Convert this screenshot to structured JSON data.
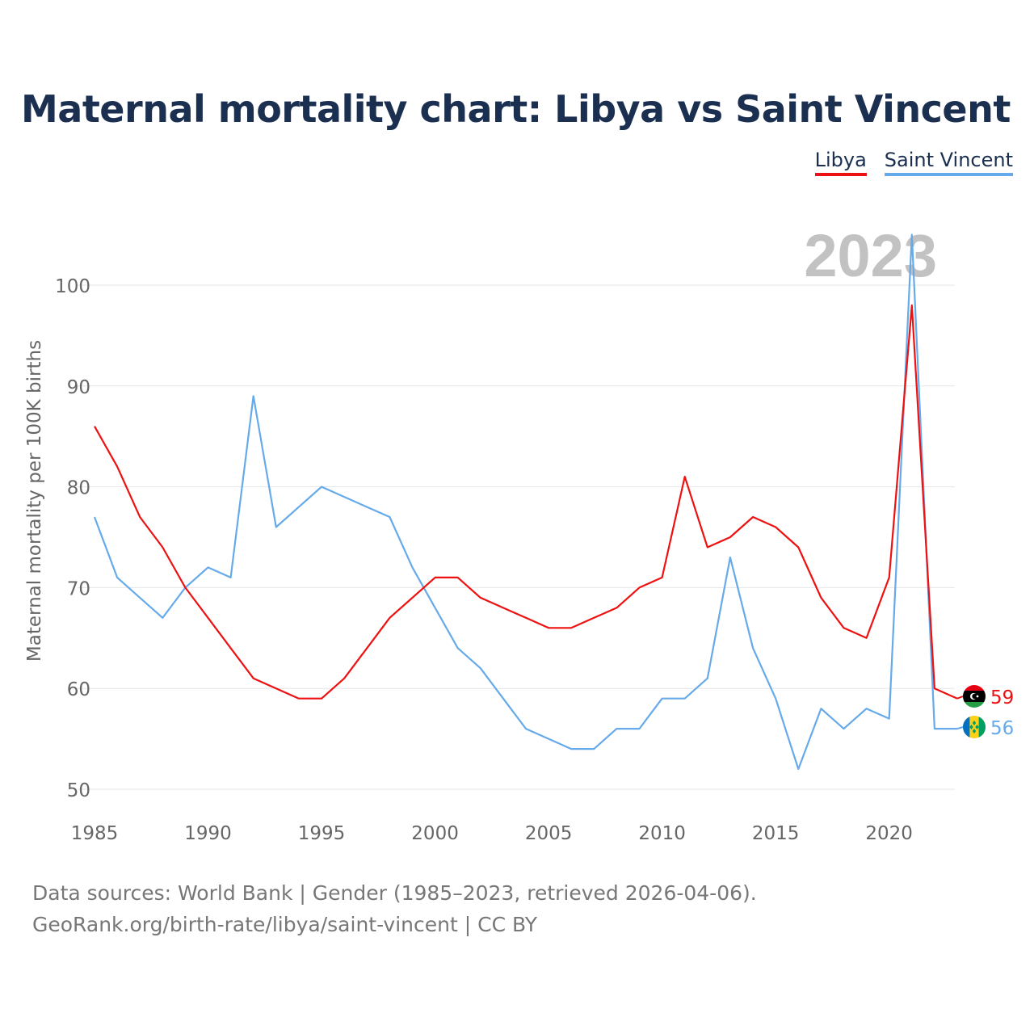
{
  "title": "Maternal mortality chart: Libya vs Saint Vincent",
  "legend": [
    {
      "label": "Libya",
      "color": "#ee1111"
    },
    {
      "label": "Saint Vincent",
      "color": "#66aaea"
    }
  ],
  "source": {
    "line1": "Data sources: World Bank | Gender (1985–2023, retrieved 2026-04-06).",
    "line2": "GeoRank.org/birth-rate/libya/saint-vincent | CC BY"
  },
  "chart_data": {
    "type": "line",
    "title": "Maternal mortality chart: Libya vs Saint Vincent",
    "ylabel": "Maternal mortality per 100K births",
    "xlabel": "",
    "year_label": "2023",
    "xlim": [
      1985,
      2023
    ],
    "ylim": [
      50,
      105
    ],
    "x_ticks": [
      1985,
      1990,
      1995,
      2000,
      2005,
      2010,
      2015,
      2020
    ],
    "y_ticks": [
      50,
      60,
      70,
      80,
      90,
      100
    ],
    "grid": true,
    "x": [
      1985,
      1986,
      1987,
      1988,
      1989,
      1990,
      1991,
      1992,
      1993,
      1994,
      1995,
      1996,
      1997,
      1998,
      1999,
      2000,
      2001,
      2002,
      2003,
      2004,
      2005,
      2006,
      2007,
      2008,
      2009,
      2010,
      2011,
      2012,
      2013,
      2014,
      2015,
      2016,
      2017,
      2018,
      2019,
      2020,
      2021,
      2022,
      2023
    ],
    "series": [
      {
        "name": "Libya",
        "color": "#ee1111",
        "end_label": "59",
        "values": [
          86,
          82,
          77,
          74,
          70,
          67,
          64,
          61,
          60,
          59,
          59,
          61,
          64,
          67,
          69,
          71,
          71,
          69,
          68,
          67,
          66,
          66,
          67,
          68,
          70,
          71,
          81,
          74,
          75,
          77,
          76,
          74,
          69,
          66,
          65,
          71,
          98,
          60,
          59
        ]
      },
      {
        "name": "Saint Vincent",
        "color": "#66aaea",
        "end_label": "56",
        "values": [
          77,
          71,
          69,
          67,
          70,
          72,
          71,
          89,
          76,
          78,
          80,
          79,
          78,
          77,
          72,
          68,
          64,
          62,
          59,
          56,
          55,
          54,
          54,
          56,
          56,
          59,
          59,
          61,
          73,
          64,
          59,
          52,
          58,
          56,
          58,
          57,
          105,
          56,
          56
        ]
      }
    ]
  }
}
